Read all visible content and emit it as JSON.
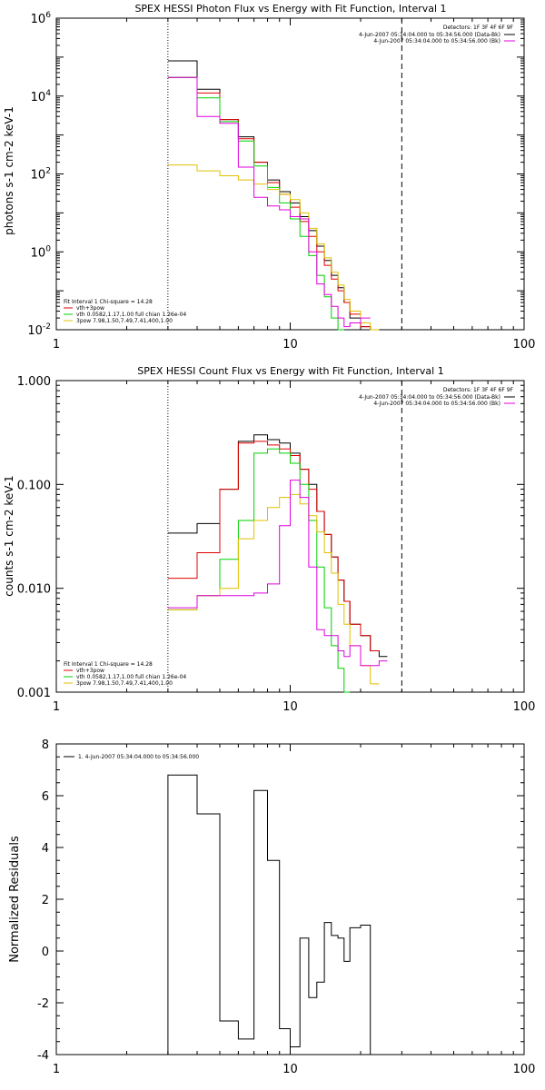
{
  "colors": {
    "data": "#000000",
    "total_fit": "#e00000",
    "thermal": "#00d000",
    "power_law": "#e0c000",
    "background": "#e000e0"
  },
  "chart_data": [
    {
      "type": "line",
      "title": "SPEX HESSI Photon Flux vs Energy with Fit Function, Interval 1",
      "ylabel": "photons s-1 cm-2 keV-1",
      "xscale": "log",
      "yscale": "log",
      "xlim": [
        1,
        100
      ],
      "ylim": [
        0.01,
        1000000
      ],
      "x_ticks": [
        "1",
        "10",
        "100"
      ],
      "y_ticks": [
        "10-2",
        "100",
        "102",
        "104",
        "106"
      ],
      "vline_dotted_x": 3,
      "vline_dashed_x": 30,
      "detectors_text": "Detectors: 1F 3F 4F 6F 9F",
      "legend_top": [
        {
          "label": "4-Jun-2007 05:34:04.000 to 05:34:56.000 (Data-Bk)",
          "color": "#000000"
        },
        {
          "label": "4-Jun-2007 05:34:04.000 to 05:34:56.000 (Bk)",
          "color": "#e000e0"
        }
      ],
      "legend_bottom": [
        {
          "label": "Fit Interval 1    Chi-square = 14.28",
          "color": null
        },
        {
          "label": "vth+3pow",
          "color": "#e00000"
        },
        {
          "label": "vth 0.0582,1.17,1.00  full chian 1.26e-04",
          "color": "#00d000"
        },
        {
          "label": "3pow 7.98,1.50,7.49,7.41,400,1.00",
          "color": "#e0c000"
        }
      ],
      "edges": [
        3,
        4,
        5,
        6,
        7,
        8,
        9,
        10,
        11,
        12,
        13,
        14,
        15,
        16,
        17,
        18,
        20,
        22,
        24,
        26,
        28,
        30
      ],
      "series": [
        {
          "name": "Data-Bk",
          "color": "#000000",
          "values": [
            80000,
            15000,
            2500,
            900,
            200,
            70,
            35,
            18,
            8,
            3.5,
            1.4,
            0.6,
            0.25,
            0.12,
            0.05,
            0.02,
            0.012,
            0.008
          ]
        },
        {
          "name": "vth+3pow",
          "color": "#e00000",
          "values": [
            30000,
            12000,
            2500,
            800,
            200,
            60,
            30,
            14,
            6,
            2.5,
            1,
            0.45,
            0.2,
            0.1,
            0.05,
            0.025,
            0.012,
            0.007
          ]
        },
        {
          "name": "vth",
          "color": "#00d000",
          "values": [
            30000,
            9000,
            2200,
            700,
            160,
            45,
            18,
            7,
            2.5,
            0.8,
            0.25,
            0.07,
            0.02,
            0.007
          ]
        },
        {
          "name": "3pow",
          "color": "#e0c000",
          "values": [
            170,
            120,
            90,
            70,
            55,
            40,
            30,
            22,
            10,
            4,
            1.6,
            0.7,
            0.3,
            0.14,
            0.06,
            0.03,
            0.015,
            0.008
          ]
        },
        {
          "name": "Bk",
          "color": "#e000e0",
          "values": [
            30000,
            3000,
            2000,
            150,
            25,
            15,
            12,
            8,
            7,
            1,
            0.15,
            0.08,
            0.04,
            0.02,
            0.012,
            0.015,
            0.02
          ]
        }
      ]
    },
    {
      "type": "line",
      "title": "SPEX HESSI Count Flux vs Energy with Fit Function, Interval 1",
      "ylabel": "counts s-1 cm-2 keV-1",
      "xscale": "log",
      "yscale": "log",
      "xlim": [
        1,
        100
      ],
      "ylim": [
        0.001,
        1
      ],
      "x_ticks": [
        "1",
        "10",
        "100"
      ],
      "y_ticks": [
        "0.001",
        "0.010",
        "0.100",
        "1.000"
      ],
      "vline_dotted_x": 3,
      "vline_dashed_x": 30,
      "detectors_text": "Detectors: 1F 3F 4F 6F 9F",
      "legend_top": [
        {
          "label": "4-Jun-2007 05:34:04.000 to 05:34:56.000 (Data-Bk)",
          "color": "#000000"
        },
        {
          "label": "4-Jun-2007 05:34:04.000 to 05:34:56.000 (Bk)",
          "color": "#e000e0"
        }
      ],
      "legend_bottom": [
        {
          "label": "Fit Interval 1    Chi-square = 14.28",
          "color": null
        },
        {
          "label": "vth+3pow",
          "color": "#e00000"
        },
        {
          "label": "vth 0.0582,1.17,1.00  full chian 1.26e-04",
          "color": "#00d000"
        },
        {
          "label": "3pow 7.98,1.50,7.49,7.41,400,1.00",
          "color": "#e0c000"
        }
      ],
      "edges": [
        3,
        4,
        5,
        6,
        7,
        8,
        9,
        10,
        11,
        12,
        13,
        14,
        15,
        16,
        17,
        18,
        20,
        22,
        24,
        26,
        28,
        30
      ],
      "series": [
        {
          "name": "Data-Bk",
          "color": "#000000",
          "values": [
            0.034,
            0.042,
            0.09,
            0.26,
            0.3,
            0.27,
            0.25,
            0.2,
            0.14,
            0.1,
            0.055,
            0.033,
            0.02,
            0.012,
            0.0075,
            0.0045,
            0.0035,
            0.0025,
            0.0022
          ]
        },
        {
          "name": "vth+3pow",
          "color": "#e00000",
          "values": [
            0.0125,
            0.022,
            0.09,
            0.25,
            0.26,
            0.24,
            0.22,
            0.19,
            0.14,
            0.09,
            0.055,
            0.033,
            0.02,
            0.012,
            0.0075,
            0.0045,
            0.0035,
            0.0025
          ]
        },
        {
          "name": "vth",
          "color": "#00d000",
          "values": [
            0.0062,
            0.0085,
            0.019,
            0.045,
            0.2,
            0.22,
            0.2,
            0.16,
            0.1,
            0.045,
            0.016,
            0.0065,
            0.0028,
            0.0017,
            0.001
          ]
        },
        {
          "name": "3pow",
          "color": "#e0c000",
          "values": [
            0.0062,
            0.0085,
            0.01,
            0.03,
            0.045,
            0.06,
            0.075,
            0.08,
            0.065,
            0.05,
            0.035,
            0.022,
            0.014,
            0.007,
            0.0045,
            0.0028,
            0.0018,
            0.0012
          ]
        },
        {
          "name": "Bk",
          "color": "#e000e0",
          "values": [
            0.0065,
            0.0085,
            0.0085,
            0.0085,
            0.009,
            0.011,
            0.04,
            0.11,
            0.075,
            0.016,
            0.004,
            0.0035,
            0.0035,
            0.0025,
            0.0022,
            0.0028,
            0.0018,
            0.0018,
            0.002
          ]
        }
      ]
    },
    {
      "type": "line",
      "title": "",
      "ylabel": "Normalized Residuals",
      "xscale": "log",
      "yscale": "linear",
      "xlim": [
        1,
        100
      ],
      "ylim": [
        -4,
        8
      ],
      "x_ticks": [
        "1",
        "10",
        "100"
      ],
      "y_ticks": [
        "-4",
        "-2",
        "0",
        "2",
        "4",
        "6",
        "8"
      ],
      "legend_top": [
        {
          "label": "1.  4-Jun-2007 05:34:04.000 to 05:34:56.000",
          "color": "#000000"
        }
      ],
      "edges": [
        3,
        4,
        5,
        6,
        7,
        8,
        9,
        10,
        11,
        12,
        13,
        14,
        15,
        16,
        17,
        18,
        20,
        22,
        24,
        26,
        28,
        30
      ],
      "series": [
        {
          "name": "residuals",
          "color": "#000000",
          "values": [
            6.8,
            5.3,
            -2.7,
            -3.4,
            6.2,
            3.5,
            -3.0,
            -3.7,
            0.5,
            -1.8,
            -1.2,
            1.1,
            0.6,
            0.5,
            -0.4,
            0.9,
            1.0
          ]
        }
      ]
    }
  ]
}
